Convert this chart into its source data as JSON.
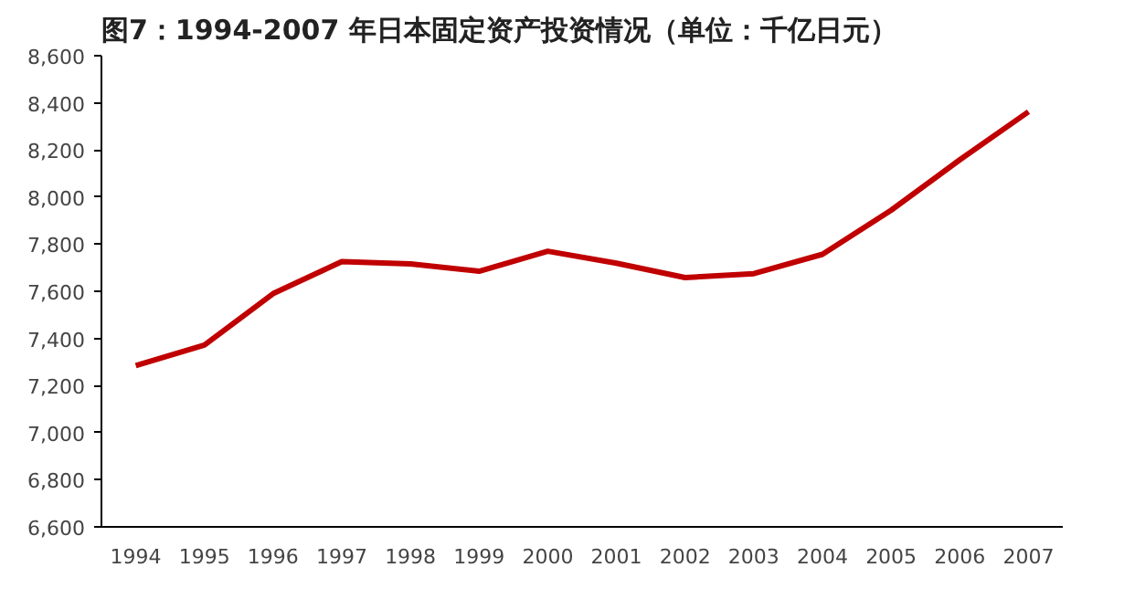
{
  "chart_data": {
    "type": "line",
    "title": "图7：1994-2007 年日本固定资产投资情况（单位：千亿日元）",
    "categories": [
      "1994",
      "1995",
      "1996",
      "1997",
      "1998",
      "1999",
      "2000",
      "2001",
      "2002",
      "2003",
      "2004",
      "2005",
      "2006",
      "2007"
    ],
    "series": [
      {
        "color": "#c00000",
        "values": [
          7285,
          7372,
          7590,
          7726,
          7716,
          7685,
          7770,
          7719,
          7658,
          7675,
          7757,
          7944,
          8158,
          8362
        ]
      }
    ],
    "ylim": [
      6600,
      8600
    ],
    "yticks": [
      {
        "value": 6600,
        "label": "6,600"
      },
      {
        "value": 6800,
        "label": "6,800"
      },
      {
        "value": 7000,
        "label": "7,000"
      },
      {
        "value": 7200,
        "label": "7,200"
      },
      {
        "value": 7400,
        "label": "7,400"
      },
      {
        "value": 7600,
        "label": "7,600"
      },
      {
        "value": 7800,
        "label": "7,800"
      },
      {
        "value": 8000,
        "label": "8,000"
      },
      {
        "value": 8200,
        "label": "8,200"
      },
      {
        "value": 8400,
        "label": "8,400"
      },
      {
        "value": 8600,
        "label": "8,600"
      }
    ],
    "grid": false,
    "marker": "none",
    "line_style": "solid"
  }
}
